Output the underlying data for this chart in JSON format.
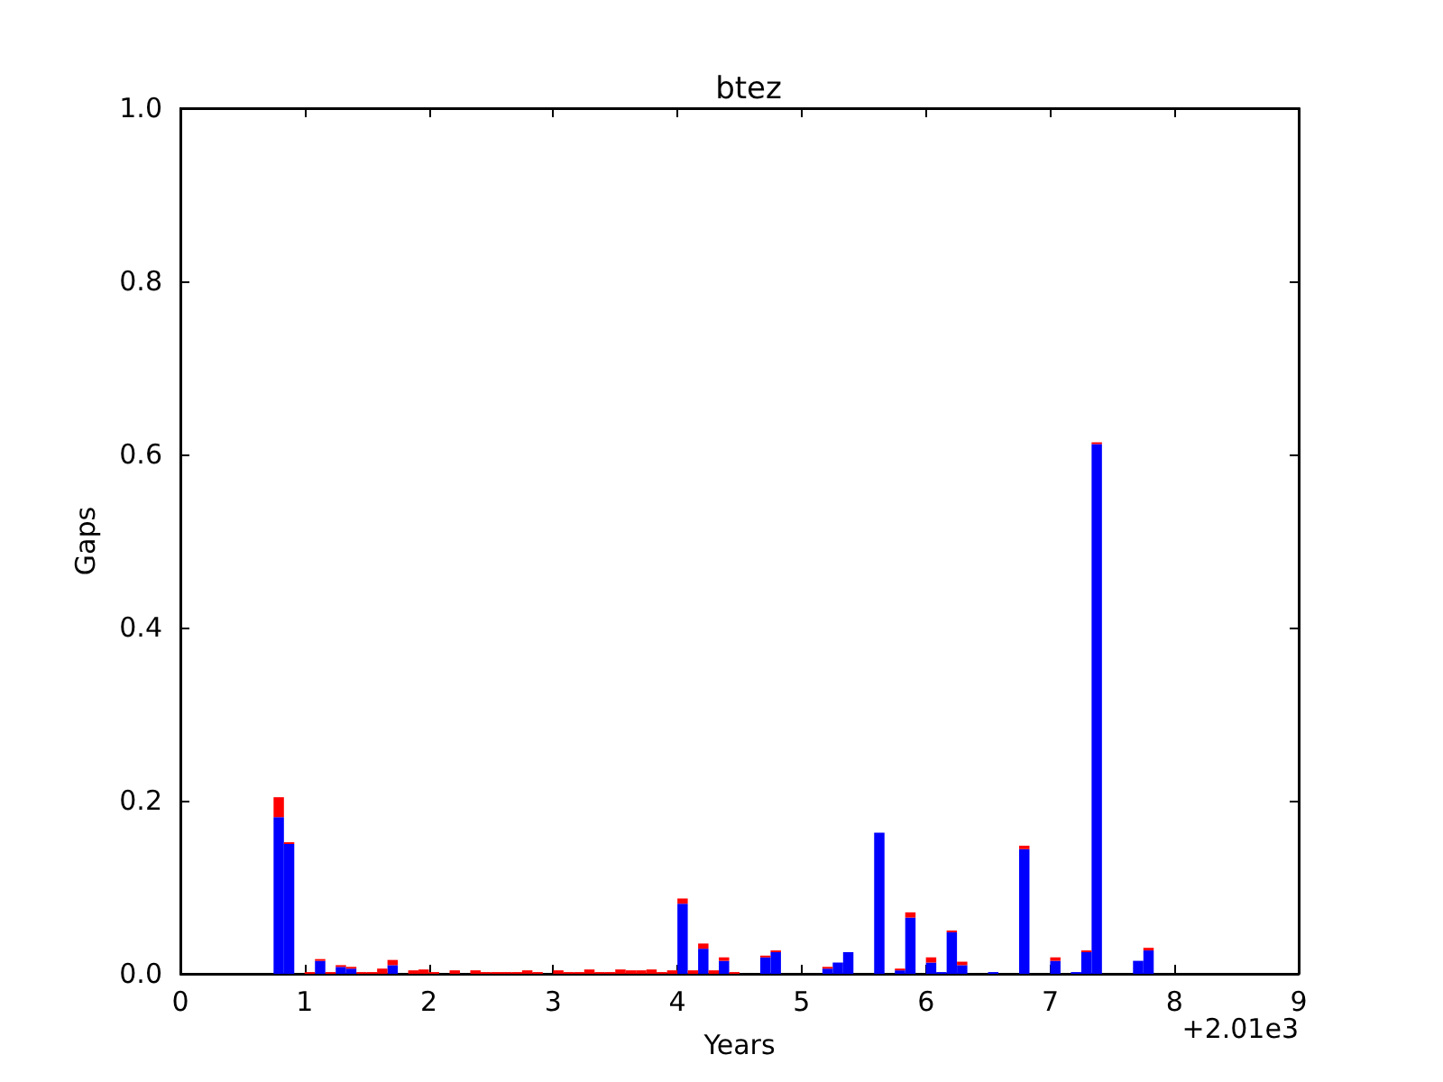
{
  "chart_data": {
    "type": "bar",
    "stacked": true,
    "title": "btez",
    "xlabel": "Years",
    "ylabel": "Gaps",
    "annotations": [
      "+2.01e3"
    ],
    "x": [
      0.75,
      0.8333,
      0.9167,
      1,
      1.0833,
      1.1667,
      1.25,
      1.3333,
      1.4167,
      1.5,
      1.5833,
      1.6667,
      1.75,
      1.8333,
      1.9167,
      2,
      2.0833,
      2.1667,
      2.25,
      2.3333,
      2.4167,
      2.5,
      2.5833,
      2.6667,
      2.75,
      2.8333,
      2.9167,
      3,
      3.0833,
      3.1667,
      3.25,
      3.3333,
      3.4167,
      3.5,
      3.5833,
      3.6667,
      3.75,
      3.8333,
      3.9167,
      4,
      4.0833,
      4.1667,
      4.25,
      4.3333,
      4.4167,
      4.5,
      4.5833,
      4.6667,
      4.75,
      4.8333,
      4.9167,
      5,
      5.0833,
      5.1667,
      5.25,
      5.3333,
      5.4167,
      5.5,
      5.5833,
      5.6667,
      5.75,
      5.8333,
      5.9167,
      6,
      6.0833,
      6.1667,
      6.25,
      6.3333,
      6.4167,
      6.5,
      6.5833,
      6.6667,
      6.75,
      6.8333,
      6.9167,
      7,
      7.0833,
      7.1667,
      7.25,
      7.3333,
      7.4167,
      7.5,
      7.5833,
      7.6667,
      7.75
    ],
    "series": [
      {
        "color": "#0000ff",
        "values": [
          0.181,
          0.15,
          0,
          0,
          0.015,
          0,
          0.008,
          0.006,
          0,
          0,
          0,
          0.01,
          0,
          0,
          0,
          0,
          0,
          0,
          0,
          0,
          0,
          0,
          0,
          0,
          0,
          0,
          0,
          0,
          0,
          0,
          0,
          0,
          0,
          0,
          0,
          0,
          0,
          0,
          0,
          0.081,
          0,
          0.029,
          0,
          0.015,
          0,
          0,
          0,
          0.019,
          0.025,
          0,
          0,
          0,
          0,
          0.006,
          0.013,
          0.025,
          0,
          0,
          0.163,
          0,
          0.004,
          0.065,
          0,
          0.013,
          0.002,
          0.048,
          0.01,
          0,
          0,
          0.002,
          0,
          0,
          0.144,
          0,
          0,
          0.015,
          0,
          0.002,
          0.025,
          0.612,
          0,
          0,
          0,
          0.015,
          0.027
        ]
      },
      {
        "color": "#ff0000",
        "values": [
          0.023,
          0.002,
          0,
          0.002,
          0.002,
          0.002,
          0.002,
          0.002,
          0.002,
          0.002,
          0.006,
          0.006,
          0,
          0.004,
          0.005,
          0.002,
          0,
          0.004,
          0,
          0.004,
          0.002,
          0.002,
          0.002,
          0.002,
          0.004,
          0.002,
          0,
          0.004,
          0.002,
          0.002,
          0.005,
          0.002,
          0.002,
          0.005,
          0.004,
          0.004,
          0.005,
          0.002,
          0.004,
          0.006,
          0.004,
          0.006,
          0.004,
          0.004,
          0.002,
          0,
          0,
          0.002,
          0.002,
          0,
          0,
          0,
          0,
          0.002,
          0,
          0,
          0,
          0,
          0,
          0,
          0.002,
          0.006,
          0,
          0.006,
          0,
          0.002,
          0.004,
          0,
          0,
          0,
          0,
          0,
          0.004,
          0,
          0,
          0.004,
          0,
          0,
          0.002,
          0.002,
          0,
          0,
          0,
          0,
          0.003
        ]
      }
    ],
    "xlim": [
      0,
      9
    ],
    "xticks": [
      0,
      1,
      2,
      3,
      4,
      5,
      6,
      7,
      8,
      9
    ],
    "ylim": [
      0,
      1
    ],
    "yticks": [
      {
        "value": 0,
        "label": "0.0"
      },
      {
        "value": 0.2,
        "label": "0.2"
      },
      {
        "value": 0.4,
        "label": "0.4"
      },
      {
        "value": 0.6,
        "label": "0.6"
      },
      {
        "value": 0.8,
        "label": "0.8"
      },
      {
        "value": 1,
        "label": "1.0"
      }
    ],
    "grid": false
  }
}
